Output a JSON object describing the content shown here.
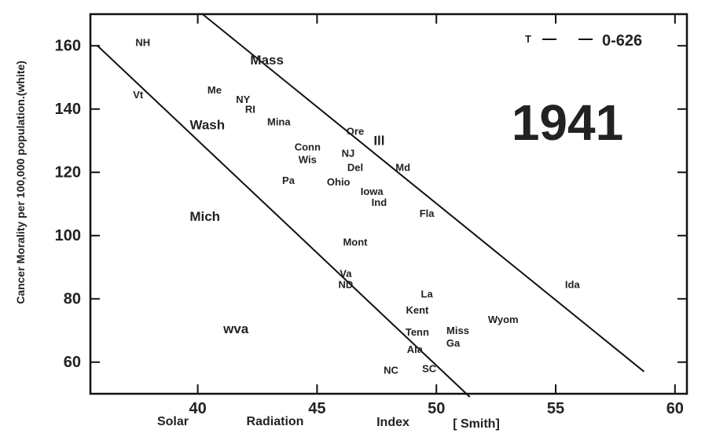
{
  "chart_data": {
    "type": "scatter",
    "annotation": "1941",
    "ylabel": "Cancer Morality per 100,000 population.(white)",
    "xlabel_words": [
      "Solar",
      "Radiation",
      "Index",
      "[ Smith]"
    ],
    "xlim": [
      35.5,
      60.5
    ],
    "ylim": [
      50,
      170
    ],
    "xticks": [
      40,
      45,
      50,
      55,
      60
    ],
    "yticks": [
      60,
      80,
      100,
      120,
      140,
      160
    ],
    "grid": false,
    "legend": {
      "marker": "T",
      "label": "0-626",
      "placement": "top-right"
    },
    "points": [
      {
        "label": "NH",
        "x": 37.7,
        "y": 161
      },
      {
        "label": "Vt",
        "x": 37.5,
        "y": 144.5
      },
      {
        "label": "Me",
        "x": 40.7,
        "y": 146
      },
      {
        "label": "NY",
        "x": 41.9,
        "y": 143
      },
      {
        "label": "RI",
        "x": 42.2,
        "y": 140
      },
      {
        "label": "Mass",
        "x": 42.9,
        "y": 155.5
      },
      {
        "label": "Wash",
        "x": 40.4,
        "y": 135
      },
      {
        "label": "Mina",
        "x": 43.4,
        "y": 136
      },
      {
        "label": "Conn",
        "x": 44.6,
        "y": 128
      },
      {
        "label": "Wis",
        "x": 44.6,
        "y": 124
      },
      {
        "label": "Ore",
        "x": 46.6,
        "y": 133
      },
      {
        "label": "NJ",
        "x": 46.3,
        "y": 126
      },
      {
        "label": "Ill",
        "x": 47.6,
        "y": 130
      },
      {
        "label": "Del",
        "x": 46.6,
        "y": 121.5
      },
      {
        "label": "Md",
        "x": 48.6,
        "y": 121.5
      },
      {
        "label": "Pa",
        "x": 43.8,
        "y": 117.5
      },
      {
        "label": "Ohio",
        "x": 45.9,
        "y": 117
      },
      {
        "label": "Iowa",
        "x": 47.3,
        "y": 114
      },
      {
        "label": "Ind",
        "x": 47.6,
        "y": 110.5
      },
      {
        "label": "Mich",
        "x": 40.3,
        "y": 106
      },
      {
        "label": "Fla",
        "x": 49.6,
        "y": 107
      },
      {
        "label": "Mont",
        "x": 46.6,
        "y": 98
      },
      {
        "label": "Va",
        "x": 46.2,
        "y": 88
      },
      {
        "label": "ND",
        "x": 46.2,
        "y": 84.5
      },
      {
        "label": "Ida",
        "x": 55.7,
        "y": 84.5
      },
      {
        "label": "La",
        "x": 49.6,
        "y": 81.5
      },
      {
        "label": "Kent",
        "x": 49.2,
        "y": 76.5
      },
      {
        "label": "Wyom",
        "x": 52.8,
        "y": 73.5
      },
      {
        "label": "wva",
        "x": 41.6,
        "y": 70.5
      },
      {
        "label": "Tenn",
        "x": 49.2,
        "y": 69.5
      },
      {
        "label": "Miss",
        "x": 50.9,
        "y": 70
      },
      {
        "label": "Ga",
        "x": 50.7,
        "y": 66
      },
      {
        "label": "Ala",
        "x": 49.1,
        "y": 64
      },
      {
        "label": "NC",
        "x": 48.1,
        "y": 57.5
      },
      {
        "label": "SC",
        "x": 49.7,
        "y": 58
      }
    ],
    "band_lines": [
      {
        "name": "lower",
        "x": [
          35.8,
          51.4
        ],
        "y": [
          160,
          49
        ]
      },
      {
        "name": "upper",
        "x": [
          40.2,
          58.7
        ],
        "y": [
          170,
          57
        ]
      }
    ]
  }
}
